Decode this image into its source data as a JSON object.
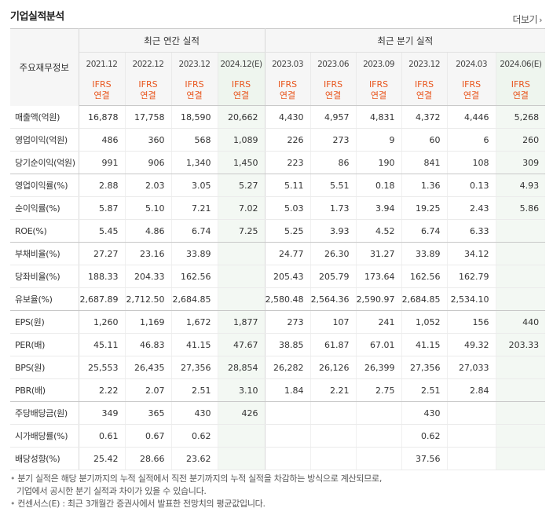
{
  "title": "기업실적분석",
  "more_label": "더보기",
  "corner_label": "주요재무정보",
  "groups": {
    "annual": "최근 연간 실적",
    "quarterly": "최근 분기 실적"
  },
  "annual_periods": [
    "2021.12",
    "2022.12",
    "2023.12",
    "2024.12(E)"
  ],
  "quarter_periods": [
    "2023.03",
    "2023.06",
    "2023.09",
    "2023.12",
    "2024.03",
    "2024.06(E)"
  ],
  "ifrs_top": "IFRS",
  "ifrs_bottom": "연결",
  "rows": [
    {
      "label": "매출액(억원)",
      "v": [
        "16,878",
        "17,758",
        "18,590",
        "20,662",
        "4,430",
        "4,957",
        "4,831",
        "4,372",
        "4,446",
        "5,268"
      ]
    },
    {
      "label": "영업이익(억원)",
      "v": [
        "486",
        "360",
        "568",
        "1,089",
        "226",
        "273",
        "9",
        "60",
        "6",
        "260"
      ]
    },
    {
      "label": "당기순이익(억원)",
      "v": [
        "991",
        "906",
        "1,340",
        "1,450",
        "223",
        "86",
        "190",
        "841",
        "108",
        "309"
      ]
    },
    {
      "label": "영업이익률(%)",
      "v": [
        "2.88",
        "2.03",
        "3.05",
        "5.27",
        "5.11",
        "5.51",
        "0.18",
        "1.36",
        "0.13",
        "4.93"
      ]
    },
    {
      "label": "순이익률(%)",
      "v": [
        "5.87",
        "5.10",
        "7.21",
        "7.02",
        "5.03",
        "1.73",
        "3.94",
        "19.25",
        "2.43",
        "5.86"
      ]
    },
    {
      "label": "ROE(%)",
      "v": [
        "5.45",
        "4.86",
        "6.74",
        "7.25",
        "5.25",
        "3.93",
        "4.52",
        "6.74",
        "6.33",
        ""
      ]
    },
    {
      "label": "부채비율(%)",
      "v": [
        "27.27",
        "23.16",
        "33.89",
        "",
        "24.77",
        "26.30",
        "31.27",
        "33.89",
        "34.12",
        ""
      ]
    },
    {
      "label": "당좌비율(%)",
      "v": [
        "188.33",
        "204.33",
        "162.56",
        "",
        "205.43",
        "205.79",
        "173.64",
        "162.56",
        "162.79",
        ""
      ]
    },
    {
      "label": "유보율(%)",
      "v": [
        "2,687.89",
        "2,712.50",
        "2,684.85",
        "",
        "2,580.48",
        "2,564.36",
        "2,590.97",
        "2,684.85",
        "2,534.10",
        ""
      ]
    },
    {
      "label": "EPS(원)",
      "v": [
        "1,260",
        "1,169",
        "1,672",
        "1,877",
        "273",
        "107",
        "241",
        "1,052",
        "156",
        "440"
      ]
    },
    {
      "label": "PER(배)",
      "v": [
        "45.11",
        "46.83",
        "41.15",
        "47.67",
        "38.85",
        "61.87",
        "67.01",
        "41.15",
        "49.32",
        "203.33"
      ]
    },
    {
      "label": "BPS(원)",
      "v": [
        "25,553",
        "26,435",
        "27,356",
        "28,854",
        "26,282",
        "26,126",
        "26,399",
        "27,356",
        "27,033",
        ""
      ]
    },
    {
      "label": "PBR(배)",
      "v": [
        "2.22",
        "2.07",
        "2.51",
        "3.10",
        "1.84",
        "2.21",
        "2.75",
        "2.51",
        "2.84",
        ""
      ]
    },
    {
      "label": "주당배당금(원)",
      "v": [
        "349",
        "365",
        "430",
        "426",
        "",
        "",
        "",
        "430",
        "",
        ""
      ]
    },
    {
      "label": "시가배당률(%)",
      "v": [
        "0.61",
        "0.67",
        "0.62",
        "",
        "",
        "",
        "",
        "0.62",
        "",
        ""
      ]
    },
    {
      "label": "배당성향(%)",
      "v": [
        "25.42",
        "28.66",
        "23.62",
        "",
        "",
        "",
        "",
        "37.56",
        "",
        ""
      ]
    }
  ],
  "group_end_rows": [
    2,
    5,
    8,
    12
  ],
  "notes": [
    "분기 실적은 해당 분기까지의 누적 실적에서 직전 분기까지의 누적 실적을 차감하는 방식으로 계산되므로,",
    "기업에서 공시한 분기 실적과 차이가 있을 수 있습니다.",
    "컨센서스(E) : 최근 3개월간 증권사에서 발표한 전망치의 평균값입니다."
  ]
}
